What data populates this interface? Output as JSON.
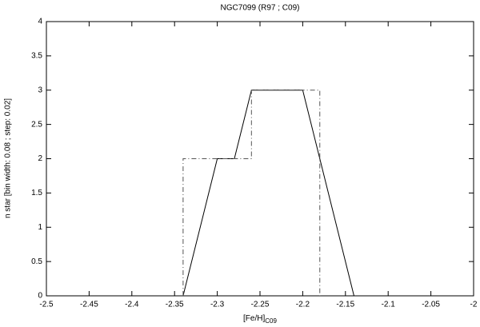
{
  "chart_data": {
    "type": "line",
    "title": "NGC7099 (R97 ; C09)",
    "x_label": "[Fe/H]",
    "x_label_sub": "C09",
    "y_label": "n star [bin width: 0.08 ; step: 0.02]",
    "xlim": [
      -2.5,
      -2
    ],
    "xticks": [
      -2.5,
      -2.45,
      -2.4,
      -2.35,
      -2.3,
      -2.25,
      -2.2,
      -2.15,
      -2.1,
      -2.05,
      -2
    ],
    "ylim": [
      0,
      4
    ],
    "yticks": [
      0,
      0.5,
      1,
      1.5,
      2,
      2.5,
      3,
      3.5,
      4
    ],
    "series": [
      {
        "color": "#000000",
        "style": "solid",
        "x": [
          -2.34,
          -2.3,
          -2.28,
          -2.26,
          -2.2,
          -2.14
        ],
        "values": [
          0,
          2,
          2,
          3,
          3,
          0
        ]
      },
      {
        "color": "#555555",
        "style": "dash-dot",
        "x": [
          -2.34,
          -2.34,
          -2.26,
          -2.26,
          -2.18,
          -2.18
        ],
        "values": [
          0,
          2,
          2,
          3,
          3,
          0
        ]
      }
    ]
  }
}
